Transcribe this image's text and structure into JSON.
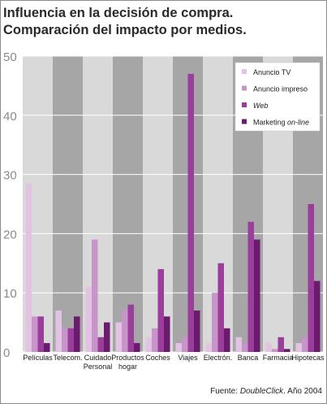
{
  "title_lines": [
    "Influencia en la decisión de compra.",
    "Comparación del impacto por medios."
  ],
  "source": {
    "prefix": "Fuente: ",
    "italic": "DoubleClick",
    "suffix": ". Año 2004"
  },
  "colors": {
    "Anuncio TV": "#e3c3e3",
    "Anuncio impreso": "#c795c9",
    "Web": "#9b3d9b",
    "Marketing on-line": "#6a1b6e",
    "band_light": "#d9d9d9",
    "band_dark": "#a6a6a6"
  },
  "chart_data": {
    "type": "bar",
    "categories": [
      "Películas",
      "Telecom.",
      "Cuidado Personal",
      "Productos hogar",
      "Coches",
      "Viajes",
      "Electrón.",
      "Banca",
      "Farmacia",
      "Hipotecas"
    ],
    "category_lines": [
      [
        "Películas"
      ],
      [
        "Telecom."
      ],
      [
        "Cuidado",
        "Personal"
      ],
      [
        "Productos",
        "hogar"
      ],
      [
        "Coches"
      ],
      [
        "Viajes"
      ],
      [
        "Electrón."
      ],
      [
        "Banca"
      ],
      [
        "Farmacia"
      ],
      [
        "Hipotecas"
      ]
    ],
    "series": [
      {
        "name": "Anuncio TV",
        "values": [
          28.5,
          7,
          11,
          5,
          2.5,
          1.5,
          1.5,
          2.5,
          1.5,
          1.5
        ]
      },
      {
        "name": "Anuncio impreso",
        "values": [
          6,
          4,
          19,
          7,
          4,
          2.5,
          10,
          1.5,
          0.5,
          2.5
        ]
      },
      {
        "name": "Web",
        "values": [
          6,
          4,
          2.5,
          8,
          14,
          47,
          15,
          22,
          2.5,
          25
        ]
      },
      {
        "name": "Marketing on-line",
        "values": [
          1.5,
          6,
          5,
          1.5,
          6,
          7,
          4,
          19,
          0.5,
          12
        ]
      }
    ],
    "legend": [
      {
        "name": "Anuncio TV",
        "plain": "Anuncio TV",
        "italic": ""
      },
      {
        "name": "Anuncio impreso",
        "plain": "Anuncio impreso",
        "italic": ""
      },
      {
        "name": "Web",
        "plain": "",
        "italic": "Web"
      },
      {
        "name": "Marketing on-line",
        "plain": "Marketing ",
        "italic": "on-line"
      }
    ],
    "yticks": [
      0,
      10,
      20,
      30,
      40,
      50
    ],
    "ylim": [
      0,
      50
    ],
    "xlabel": "",
    "ylabel": "",
    "grid": true,
    "legend_position": "top-right"
  }
}
